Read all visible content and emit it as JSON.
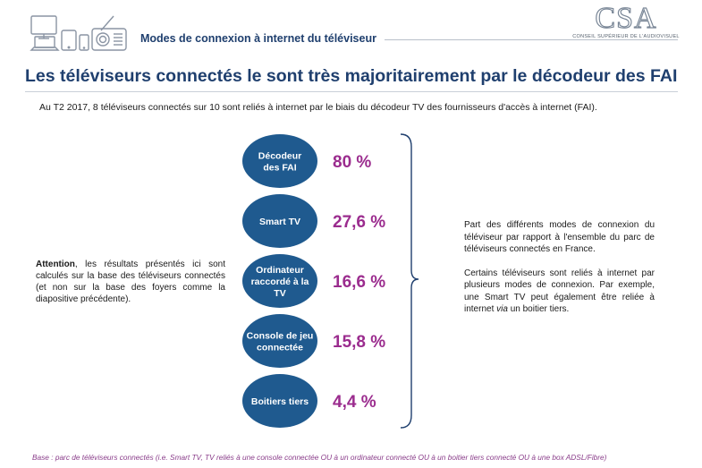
{
  "header": {
    "section_title": "Modes de connexion à internet du téléviseur",
    "logo_text": "CSA",
    "logo_subtitle": "CONSEIL SUPÉRIEUR DE L'AUDIOVISUEL",
    "icons": [
      "tv-icon",
      "laptop-icon",
      "tablet-icon",
      "phone-icon",
      "radio-icon"
    ]
  },
  "main_title": "Les téléviseurs connectés le sont très majoritairement par le décodeur des FAI",
  "intro": "Au T2 2017, 8 téléviseurs connectés sur 10 sont reliés à internet par le biais du décodeur TV des fournisseurs d'accès à internet (FAI).",
  "note_left": {
    "bold": "Attention",
    "text": ", les résultats présentés ici sont calculés sur la base des téléviseurs connectés (et non sur la base des foyers comme la diapositive précédente)."
  },
  "note_right": {
    "p1": "Part des différents modes de connexion du téléviseur par rapport à l'ensemble du parc de téléviseurs connectés en France.",
    "p2_before": "Certains téléviseurs sont reliés à internet par plusieurs modes de connexion. Par exemple, une Smart TV peut également être reliée à internet ",
    "p2_italic": "via",
    "p2_after": " un boitier tiers."
  },
  "base_note": "Base : parc de téléviseurs connectés (i.e. Smart TV, TV reliés à une console connectée OU à un ordinateur connecté OU à un boitier tiers connecté OU à une box ADSL/Fibre)",
  "colors": {
    "bubble": "#1f5a8f",
    "value": "#9b2c8e",
    "title": "#1f3f6e",
    "bracket": "#1f3f6e"
  },
  "chart_data": {
    "type": "bar",
    "categories": [
      [
        "Décodeur",
        "des FAI"
      ],
      [
        "Smart TV"
      ],
      [
        "Ordinateur",
        "raccordé à la",
        "TV"
      ],
      [
        "Console de jeu",
        "connectée"
      ],
      [
        "Boitiers tiers"
      ]
    ],
    "values": [
      80,
      27.6,
      16.6,
      15.8,
      4.4
    ],
    "value_labels": [
      "80 %",
      "27,6 %",
      "16,6 %",
      "15,8 %",
      "4,4 %"
    ],
    "unit": "%"
  }
}
